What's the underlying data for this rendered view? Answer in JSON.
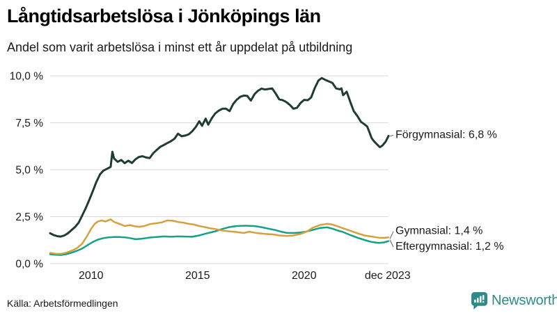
{
  "header": {
    "title": "Långtidsarbetslösa i Jönköpings län",
    "subtitle": "Andel som varit arbetslösa i minst ett år uppdelat på utbildning"
  },
  "footer": {
    "source": "Källa: Arbetsförmedlingen",
    "logo_text": "Newsworthy",
    "logo_icon": "newsworthy-bar-chart-speech-bubble-icon",
    "logo_color": "#2e8b8a"
  },
  "chart_data": {
    "type": "line",
    "title": "Långtidsarbetslösa i Jönköpings län",
    "subtitle": "Andel som varit arbetslösa i minst ett år uppdelat på utbildning",
    "xlabel": "",
    "ylabel": "",
    "ylim": [
      0,
      10
    ],
    "xlim": [
      2008.08,
      2023.96
    ],
    "grid": true,
    "legend_position": "end-of-line-labels",
    "y_ticks": [
      {
        "value": 0,
        "label": "0,0 %"
      },
      {
        "value": 2.5,
        "label": "2,5 %"
      },
      {
        "value": 5,
        "label": "5,0 %"
      },
      {
        "value": 7.5,
        "label": "7,5 %"
      },
      {
        "value": 10,
        "label": "10,0 %"
      }
    ],
    "x_ticks": [
      {
        "value": 2010,
        "label": "2010"
      },
      {
        "value": 2015,
        "label": "2015"
      },
      {
        "value": 2020,
        "label": "2020"
      },
      {
        "value": 2023.92,
        "label": "dec 2023"
      }
    ],
    "series": [
      {
        "name": "Förgymnasial",
        "label": "Förgymnasial: 6,8 %",
        "end_value": 6.8,
        "color": "#1e3c34",
        "width": 3,
        "points": [
          [
            2008.08,
            1.62
          ],
          [
            2008.25,
            1.52
          ],
          [
            2008.42,
            1.46
          ],
          [
            2008.58,
            1.44
          ],
          [
            2008.75,
            1.5
          ],
          [
            2008.92,
            1.62
          ],
          [
            2009.08,
            1.78
          ],
          [
            2009.25,
            1.95
          ],
          [
            2009.42,
            2.18
          ],
          [
            2009.58,
            2.55
          ],
          [
            2009.75,
            2.95
          ],
          [
            2009.92,
            3.4
          ],
          [
            2010.08,
            3.85
          ],
          [
            2010.25,
            4.35
          ],
          [
            2010.42,
            4.75
          ],
          [
            2010.58,
            4.95
          ],
          [
            2010.75,
            5.05
          ],
          [
            2010.92,
            5.15
          ],
          [
            2011.0,
            5.95
          ],
          [
            2011.08,
            5.6
          ],
          [
            2011.25,
            5.42
          ],
          [
            2011.42,
            5.52
          ],
          [
            2011.58,
            5.35
          ],
          [
            2011.75,
            5.48
          ],
          [
            2011.92,
            5.36
          ],
          [
            2012.08,
            5.55
          ],
          [
            2012.25,
            5.68
          ],
          [
            2012.42,
            5.72
          ],
          [
            2012.58,
            5.65
          ],
          [
            2012.75,
            5.62
          ],
          [
            2012.92,
            5.88
          ],
          [
            2013.08,
            6.05
          ],
          [
            2013.25,
            6.22
          ],
          [
            2013.42,
            6.32
          ],
          [
            2013.58,
            6.42
          ],
          [
            2013.75,
            6.52
          ],
          [
            2013.92,
            6.65
          ],
          [
            2014.08,
            6.92
          ],
          [
            2014.25,
            6.78
          ],
          [
            2014.42,
            6.82
          ],
          [
            2014.58,
            6.88
          ],
          [
            2014.75,
            7.05
          ],
          [
            2014.92,
            7.28
          ],
          [
            2015.08,
            7.58
          ],
          [
            2015.21,
            7.34
          ],
          [
            2015.38,
            7.72
          ],
          [
            2015.5,
            7.4
          ],
          [
            2015.67,
            7.75
          ],
          [
            2015.83,
            8.0
          ],
          [
            2016.0,
            8.15
          ],
          [
            2016.17,
            8.25
          ],
          [
            2016.33,
            8.25
          ],
          [
            2016.5,
            8.12
          ],
          [
            2016.67,
            8.5
          ],
          [
            2016.83,
            8.72
          ],
          [
            2017.0,
            8.88
          ],
          [
            2017.17,
            8.95
          ],
          [
            2017.33,
            8.93
          ],
          [
            2017.5,
            8.68
          ],
          [
            2017.67,
            9.02
          ],
          [
            2017.83,
            9.2
          ],
          [
            2018.0,
            9.32
          ],
          [
            2018.17,
            9.27
          ],
          [
            2018.33,
            9.3
          ],
          [
            2018.5,
            9.33
          ],
          [
            2018.67,
            9.05
          ],
          [
            2018.83,
            8.75
          ],
          [
            2019.0,
            8.7
          ],
          [
            2019.17,
            8.6
          ],
          [
            2019.33,
            8.45
          ],
          [
            2019.5,
            8.25
          ],
          [
            2019.67,
            8.3
          ],
          [
            2019.83,
            8.55
          ],
          [
            2020.0,
            8.72
          ],
          [
            2020.17,
            8.7
          ],
          [
            2020.33,
            8.85
          ],
          [
            2020.5,
            9.35
          ],
          [
            2020.67,
            9.75
          ],
          [
            2020.83,
            9.88
          ],
          [
            2021.0,
            9.78
          ],
          [
            2021.17,
            9.7
          ],
          [
            2021.33,
            9.62
          ],
          [
            2021.5,
            9.33
          ],
          [
            2021.67,
            9.28
          ],
          [
            2021.75,
            9.33
          ],
          [
            2021.83,
            8.97
          ],
          [
            2022.0,
            9.15
          ],
          [
            2022.17,
            8.6
          ],
          [
            2022.33,
            8.12
          ],
          [
            2022.5,
            7.86
          ],
          [
            2022.67,
            7.55
          ],
          [
            2022.83,
            7.42
          ],
          [
            2022.96,
            7.3
          ],
          [
            2023.08,
            6.95
          ],
          [
            2023.17,
            6.68
          ],
          [
            2023.29,
            6.5
          ],
          [
            2023.42,
            6.35
          ],
          [
            2023.55,
            6.2
          ],
          [
            2023.67,
            6.28
          ],
          [
            2023.83,
            6.5
          ],
          [
            2023.96,
            6.8
          ]
        ]
      },
      {
        "name": "Eftergymnasial",
        "label": "Eftergymnasial: 1,2 %",
        "end_value": 1.2,
        "color": "#13a18a",
        "width": 2.5,
        "points": [
          [
            2008.08,
            0.5
          ],
          [
            2008.33,
            0.47
          ],
          [
            2008.58,
            0.46
          ],
          [
            2008.83,
            0.5
          ],
          [
            2009.08,
            0.58
          ],
          [
            2009.33,
            0.68
          ],
          [
            2009.58,
            0.8
          ],
          [
            2009.83,
            0.98
          ],
          [
            2010.08,
            1.15
          ],
          [
            2010.33,
            1.28
          ],
          [
            2010.58,
            1.36
          ],
          [
            2010.83,
            1.4
          ],
          [
            2011.08,
            1.42
          ],
          [
            2011.33,
            1.42
          ],
          [
            2011.58,
            1.4
          ],
          [
            2011.83,
            1.36
          ],
          [
            2012.08,
            1.3
          ],
          [
            2012.33,
            1.32
          ],
          [
            2012.58,
            1.36
          ],
          [
            2012.83,
            1.4
          ],
          [
            2013.08,
            1.42
          ],
          [
            2013.42,
            1.45
          ],
          [
            2013.75,
            1.43
          ],
          [
            2014.08,
            1.45
          ],
          [
            2014.42,
            1.44
          ],
          [
            2014.75,
            1.43
          ],
          [
            2015.08,
            1.5
          ],
          [
            2015.33,
            1.58
          ],
          [
            2015.58,
            1.65
          ],
          [
            2015.83,
            1.72
          ],
          [
            2016.17,
            1.85
          ],
          [
            2016.5,
            1.95
          ],
          [
            2016.83,
            2.0
          ],
          [
            2017.25,
            2.02
          ],
          [
            2017.67,
            2.0
          ],
          [
            2018.0,
            1.94
          ],
          [
            2018.33,
            1.86
          ],
          [
            2018.67,
            1.78
          ],
          [
            2018.92,
            1.7
          ],
          [
            2019.17,
            1.64
          ],
          [
            2019.5,
            1.63
          ],
          [
            2019.83,
            1.66
          ],
          [
            2020.08,
            1.7
          ],
          [
            2020.42,
            1.8
          ],
          [
            2020.75,
            1.9
          ],
          [
            2021.08,
            1.93
          ],
          [
            2021.33,
            1.86
          ],
          [
            2021.58,
            1.76
          ],
          [
            2021.83,
            1.68
          ],
          [
            2022.17,
            1.52
          ],
          [
            2022.5,
            1.38
          ],
          [
            2022.83,
            1.26
          ],
          [
            2023.17,
            1.15
          ],
          [
            2023.5,
            1.1
          ],
          [
            2023.75,
            1.13
          ],
          [
            2023.96,
            1.2
          ]
        ]
      },
      {
        "name": "Gymnasial",
        "label": "Gymnasial: 1,4 %",
        "end_value": 1.4,
        "color": "#d6a13d",
        "width": 2.5,
        "points": [
          [
            2008.08,
            0.57
          ],
          [
            2008.33,
            0.53
          ],
          [
            2008.58,
            0.52
          ],
          [
            2008.83,
            0.58
          ],
          [
            2009.08,
            0.68
          ],
          [
            2009.33,
            0.82
          ],
          [
            2009.58,
            1.05
          ],
          [
            2009.83,
            1.5
          ],
          [
            2010.0,
            1.85
          ],
          [
            2010.17,
            2.12
          ],
          [
            2010.33,
            2.25
          ],
          [
            2010.5,
            2.3
          ],
          [
            2010.67,
            2.24
          ],
          [
            2010.92,
            2.36
          ],
          [
            2011.08,
            2.22
          ],
          [
            2011.33,
            2.12
          ],
          [
            2011.58,
            2.0
          ],
          [
            2011.83,
            2.05
          ],
          [
            2012.0,
            2.0
          ],
          [
            2012.25,
            1.96
          ],
          [
            2012.5,
            2.0
          ],
          [
            2012.75,
            2.1
          ],
          [
            2013.08,
            2.15
          ],
          [
            2013.33,
            2.2
          ],
          [
            2013.58,
            2.3
          ],
          [
            2013.83,
            2.28
          ],
          [
            2014.08,
            2.22
          ],
          [
            2014.33,
            2.18
          ],
          [
            2014.58,
            2.12
          ],
          [
            2014.83,
            2.08
          ],
          [
            2015.08,
            2.0
          ],
          [
            2015.33,
            1.95
          ],
          [
            2015.58,
            1.88
          ],
          [
            2015.83,
            1.84
          ],
          [
            2016.17,
            1.76
          ],
          [
            2016.5,
            1.72
          ],
          [
            2016.83,
            1.68
          ],
          [
            2017.17,
            1.63
          ],
          [
            2017.42,
            1.7
          ],
          [
            2017.83,
            1.62
          ],
          [
            2018.17,
            1.58
          ],
          [
            2018.5,
            1.56
          ],
          [
            2018.83,
            1.5
          ],
          [
            2019.17,
            1.47
          ],
          [
            2019.5,
            1.5
          ],
          [
            2019.83,
            1.58
          ],
          [
            2020.08,
            1.68
          ],
          [
            2020.42,
            1.92
          ],
          [
            2020.75,
            2.06
          ],
          [
            2021.08,
            2.12
          ],
          [
            2021.33,
            2.08
          ],
          [
            2021.58,
            1.98
          ],
          [
            2021.83,
            1.88
          ],
          [
            2022.17,
            1.75
          ],
          [
            2022.5,
            1.62
          ],
          [
            2022.83,
            1.5
          ],
          [
            2023.17,
            1.44
          ],
          [
            2023.5,
            1.38
          ],
          [
            2023.75,
            1.37
          ],
          [
            2023.96,
            1.4
          ]
        ]
      }
    ]
  }
}
